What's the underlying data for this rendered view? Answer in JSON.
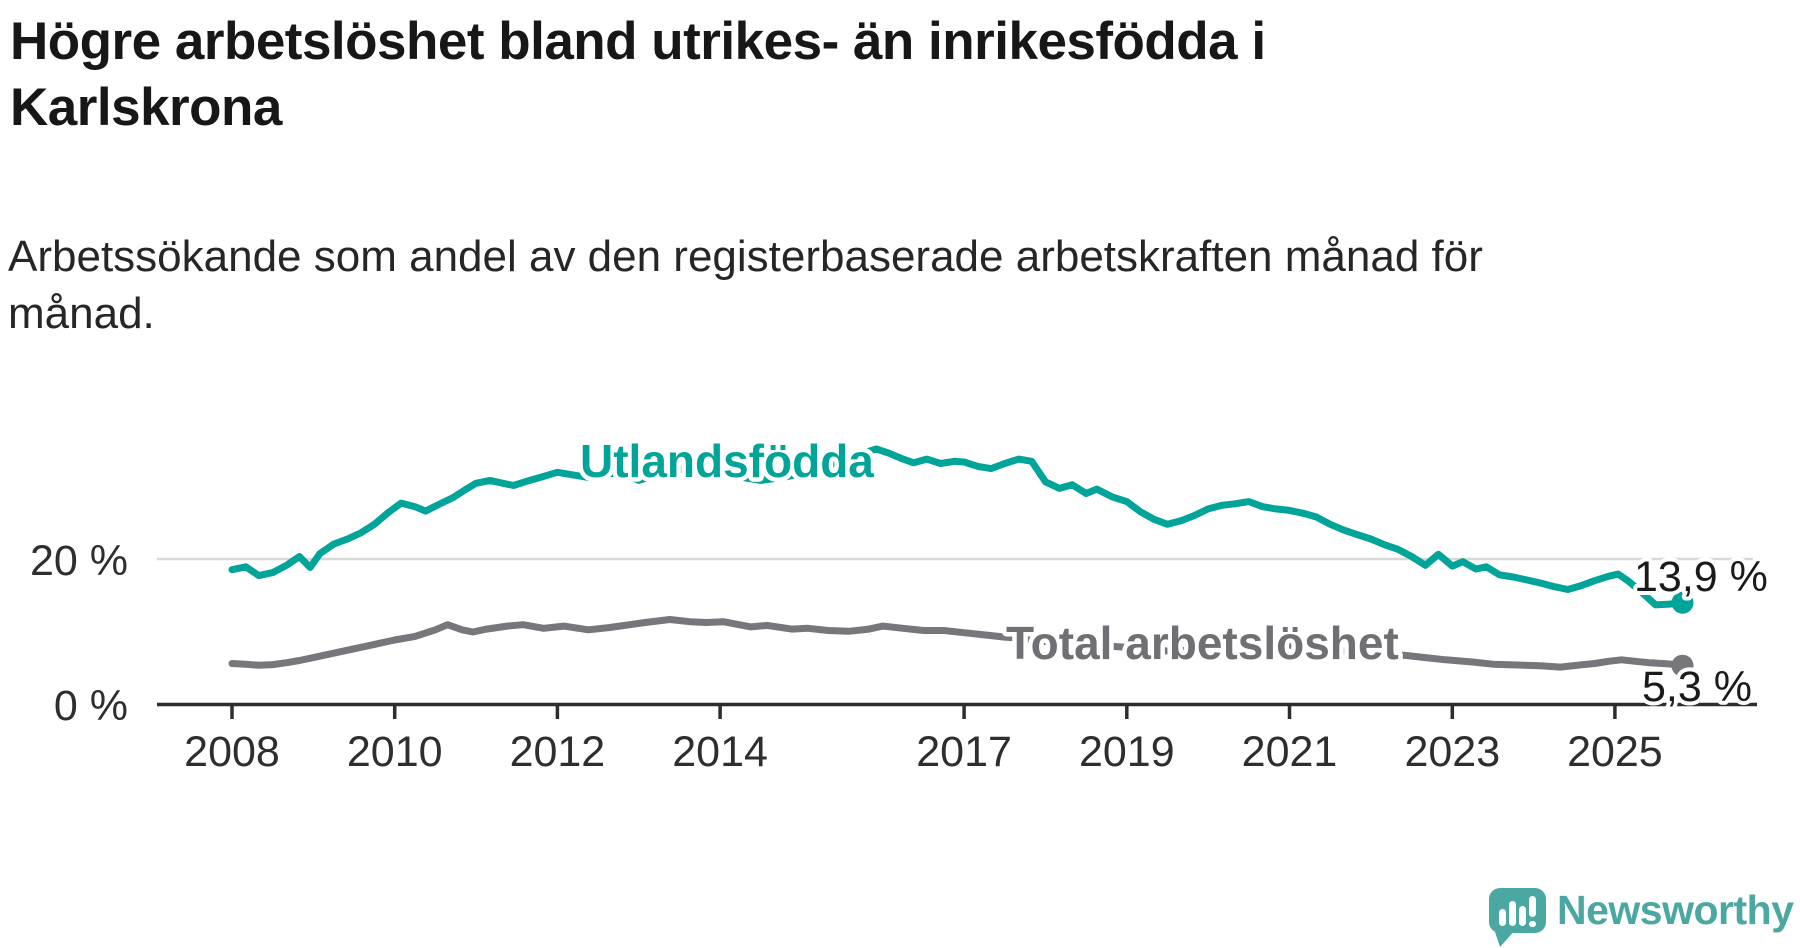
{
  "header": {
    "title_lines": [
      "Högre arbetslöshet bland utrikes- än inrikesfödda i",
      "Karlskrona"
    ],
    "subtitle_lines": [
      "Arbetssökande som andel av den registerbaserade arbetskraften månad för",
      "månad."
    ]
  },
  "branding": {
    "wordmark": "Newsworthy",
    "logo_icon": "speech-bubble-bar-chart-icon",
    "brand_color": "#4BA7A2"
  },
  "colors": {
    "foreign_born_line": "#00A499",
    "total_line": "#76767B",
    "gridline": "#D8D8D8",
    "axis": "#2D2D2D",
    "axis_text": "#2E2E2E",
    "title_text": "#171717"
  },
  "chart_data": {
    "type": "line",
    "title": "Högre arbetslöshet bland utrikes- än inrikesfödda i Karlskrona",
    "subtitle": "Arbetssökande som andel av den registerbaserade arbetskraften månad för månad.",
    "unit": "%",
    "grid": "single horizontal gridline at 20 %, x-axis baseline at 0 %",
    "legend": "inline labels next to lines",
    "x_range": [
      2008,
      2025.9
    ],
    "ylim": [
      0,
      38
    ],
    "x_ticks": [
      {
        "year": 2008,
        "label": "2008"
      },
      {
        "year": 2010,
        "label": "2010"
      },
      {
        "year": 2012,
        "label": "2012"
      },
      {
        "year": 2014,
        "label": "2014"
      },
      {
        "year": 2017,
        "label": "2017"
      },
      {
        "year": 2019,
        "label": "2019"
      },
      {
        "year": 2021,
        "label": "2021"
      },
      {
        "year": 2023,
        "label": "2023"
      },
      {
        "year": 2025,
        "label": "2025"
      }
    ],
    "y_ticks": [
      {
        "value": 20,
        "label": "20 %"
      },
      {
        "value": 0,
        "label": "0 %"
      }
    ],
    "series": [
      {
        "name": "Utlandsfödda",
        "color": "#00A499",
        "end_label": "13,9 %",
        "end_value": 13.9,
        "points": [
          [
            2008.0,
            18.4
          ],
          [
            2008.17,
            18.8
          ],
          [
            2008.33,
            17.6
          ],
          [
            2008.5,
            18.0
          ],
          [
            2008.67,
            19.0
          ],
          [
            2008.83,
            20.2
          ],
          [
            2008.96,
            18.7
          ],
          [
            2009.08,
            20.6
          ],
          [
            2009.25,
            21.9
          ],
          [
            2009.42,
            22.6
          ],
          [
            2009.58,
            23.4
          ],
          [
            2009.75,
            24.6
          ],
          [
            2009.92,
            26.2
          ],
          [
            2010.08,
            27.5
          ],
          [
            2010.25,
            27.0
          ],
          [
            2010.38,
            26.4
          ],
          [
            2010.54,
            27.3
          ],
          [
            2010.71,
            28.2
          ],
          [
            2010.88,
            29.4
          ],
          [
            2011.0,
            30.2
          ],
          [
            2011.17,
            30.6
          ],
          [
            2011.33,
            30.2
          ],
          [
            2011.46,
            29.9
          ],
          [
            2011.63,
            30.5
          ],
          [
            2011.79,
            31.0
          ],
          [
            2012.0,
            31.7
          ],
          [
            2012.21,
            31.3
          ],
          [
            2012.38,
            31.0
          ],
          [
            2012.58,
            31.4
          ],
          [
            2012.79,
            31.7
          ],
          [
            2013.0,
            30.6
          ],
          [
            2013.17,
            31.2
          ],
          [
            2013.33,
            31.7
          ],
          [
            2013.54,
            32.1
          ],
          [
            2013.75,
            31.9
          ],
          [
            2013.92,
            31.6
          ],
          [
            2014.13,
            31.3
          ],
          [
            2014.33,
            30.9
          ],
          [
            2014.5,
            30.6
          ],
          [
            2014.71,
            30.9
          ],
          [
            2014.92,
            31.3
          ],
          [
            2015.13,
            31.9
          ],
          [
            2015.33,
            32.6
          ],
          [
            2015.54,
            33.4
          ],
          [
            2015.75,
            34.3
          ],
          [
            2015.92,
            34.9
          ],
          [
            2016.08,
            34.3
          ],
          [
            2016.25,
            33.5
          ],
          [
            2016.38,
            33.0
          ],
          [
            2016.54,
            33.5
          ],
          [
            2016.71,
            32.9
          ],
          [
            2016.88,
            33.2
          ],
          [
            2017.0,
            33.1
          ],
          [
            2017.17,
            32.5
          ],
          [
            2017.33,
            32.2
          ],
          [
            2017.5,
            32.9
          ],
          [
            2017.67,
            33.5
          ],
          [
            2017.83,
            33.2
          ],
          [
            2018.0,
            30.4
          ],
          [
            2018.17,
            29.5
          ],
          [
            2018.33,
            30.0
          ],
          [
            2018.5,
            28.8
          ],
          [
            2018.63,
            29.4
          ],
          [
            2018.83,
            28.3
          ],
          [
            2019.0,
            27.7
          ],
          [
            2019.17,
            26.3
          ],
          [
            2019.33,
            25.3
          ],
          [
            2019.5,
            24.6
          ],
          [
            2019.67,
            25.1
          ],
          [
            2019.83,
            25.8
          ],
          [
            2020.0,
            26.7
          ],
          [
            2020.17,
            27.2
          ],
          [
            2020.33,
            27.4
          ],
          [
            2020.5,
            27.7
          ],
          [
            2020.67,
            27.0
          ],
          [
            2020.83,
            26.7
          ],
          [
            2021.0,
            26.5
          ],
          [
            2021.17,
            26.1
          ],
          [
            2021.33,
            25.6
          ],
          [
            2021.5,
            24.6
          ],
          [
            2021.67,
            23.8
          ],
          [
            2021.83,
            23.2
          ],
          [
            2022.0,
            22.6
          ],
          [
            2022.17,
            21.8
          ],
          [
            2022.33,
            21.2
          ],
          [
            2022.5,
            20.2
          ],
          [
            2022.67,
            19.0
          ],
          [
            2022.83,
            20.5
          ],
          [
            2023.0,
            18.9
          ],
          [
            2023.13,
            19.5
          ],
          [
            2023.29,
            18.5
          ],
          [
            2023.42,
            18.8
          ],
          [
            2023.58,
            17.7
          ],
          [
            2023.75,
            17.4
          ],
          [
            2023.92,
            17.0
          ],
          [
            2024.08,
            16.6
          ],
          [
            2024.25,
            16.1
          ],
          [
            2024.42,
            15.7
          ],
          [
            2024.58,
            16.2
          ],
          [
            2024.75,
            16.9
          ],
          [
            2024.92,
            17.5
          ],
          [
            2025.04,
            17.8
          ],
          [
            2025.17,
            16.8
          ],
          [
            2025.33,
            15.3
          ],
          [
            2025.5,
            13.6
          ],
          [
            2025.67,
            13.7
          ],
          [
            2025.83,
            13.9
          ]
        ]
      },
      {
        "name": "Total arbetslöshet",
        "color": "#76767B",
        "end_label": "5,3 %",
        "end_value": 5.3,
        "points": [
          [
            2008.0,
            5.6
          ],
          [
            2008.17,
            5.5
          ],
          [
            2008.33,
            5.35
          ],
          [
            2008.5,
            5.45
          ],
          [
            2008.67,
            5.7
          ],
          [
            2008.83,
            6.0
          ],
          [
            2009.0,
            6.4
          ],
          [
            2009.25,
            7.0
          ],
          [
            2009.5,
            7.6
          ],
          [
            2009.75,
            8.2
          ],
          [
            2010.0,
            8.8
          ],
          [
            2010.25,
            9.3
          ],
          [
            2010.5,
            10.2
          ],
          [
            2010.65,
            10.9
          ],
          [
            2010.83,
            10.2
          ],
          [
            2010.96,
            9.9
          ],
          [
            2011.13,
            10.3
          ],
          [
            2011.38,
            10.7
          ],
          [
            2011.58,
            10.9
          ],
          [
            2011.83,
            10.4
          ],
          [
            2012.08,
            10.7
          ],
          [
            2012.38,
            10.2
          ],
          [
            2012.63,
            10.5
          ],
          [
            2012.83,
            10.8
          ],
          [
            2013.08,
            11.2
          ],
          [
            2013.38,
            11.6
          ],
          [
            2013.63,
            11.3
          ],
          [
            2013.83,
            11.2
          ],
          [
            2014.04,
            11.3
          ],
          [
            2014.38,
            10.6
          ],
          [
            2014.58,
            10.8
          ],
          [
            2014.88,
            10.3
          ],
          [
            2015.08,
            10.4
          ],
          [
            2015.33,
            10.1
          ],
          [
            2015.58,
            10.0
          ],
          [
            2015.83,
            10.3
          ],
          [
            2016.0,
            10.7
          ],
          [
            2016.25,
            10.4
          ],
          [
            2016.5,
            10.1
          ],
          [
            2016.75,
            10.1
          ],
          [
            2017.0,
            9.8
          ],
          [
            2017.25,
            9.5
          ],
          [
            2017.5,
            9.2
          ],
          [
            2017.75,
            9.0
          ],
          [
            2018.0,
            8.6
          ],
          [
            2018.25,
            8.4
          ],
          [
            2018.5,
            8.3
          ],
          [
            2018.75,
            8.0
          ],
          [
            2019.0,
            7.8
          ],
          [
            2019.25,
            7.5
          ],
          [
            2019.5,
            7.3
          ],
          [
            2019.75,
            7.4
          ],
          [
            2020.0,
            7.7
          ],
          [
            2020.25,
            8.2
          ],
          [
            2020.5,
            8.5
          ],
          [
            2020.75,
            8.4
          ],
          [
            2021.0,
            8.1
          ],
          [
            2021.25,
            7.9
          ],
          [
            2021.5,
            7.5
          ],
          [
            2021.75,
            7.2
          ],
          [
            2022.0,
            7.0
          ],
          [
            2022.17,
            6.9
          ],
          [
            2022.42,
            6.7
          ],
          [
            2022.67,
            6.4
          ],
          [
            2022.92,
            6.1
          ],
          [
            2023.25,
            5.8
          ],
          [
            2023.5,
            5.5
          ],
          [
            2023.75,
            5.4
          ],
          [
            2024.08,
            5.3
          ],
          [
            2024.33,
            5.1
          ],
          [
            2024.58,
            5.4
          ],
          [
            2024.75,
            5.6
          ],
          [
            2024.92,
            5.9
          ],
          [
            2025.08,
            6.1
          ],
          [
            2025.25,
            5.9
          ],
          [
            2025.42,
            5.7
          ],
          [
            2025.58,
            5.6
          ],
          [
            2025.71,
            5.5
          ],
          [
            2025.83,
            5.3
          ]
        ]
      }
    ]
  }
}
